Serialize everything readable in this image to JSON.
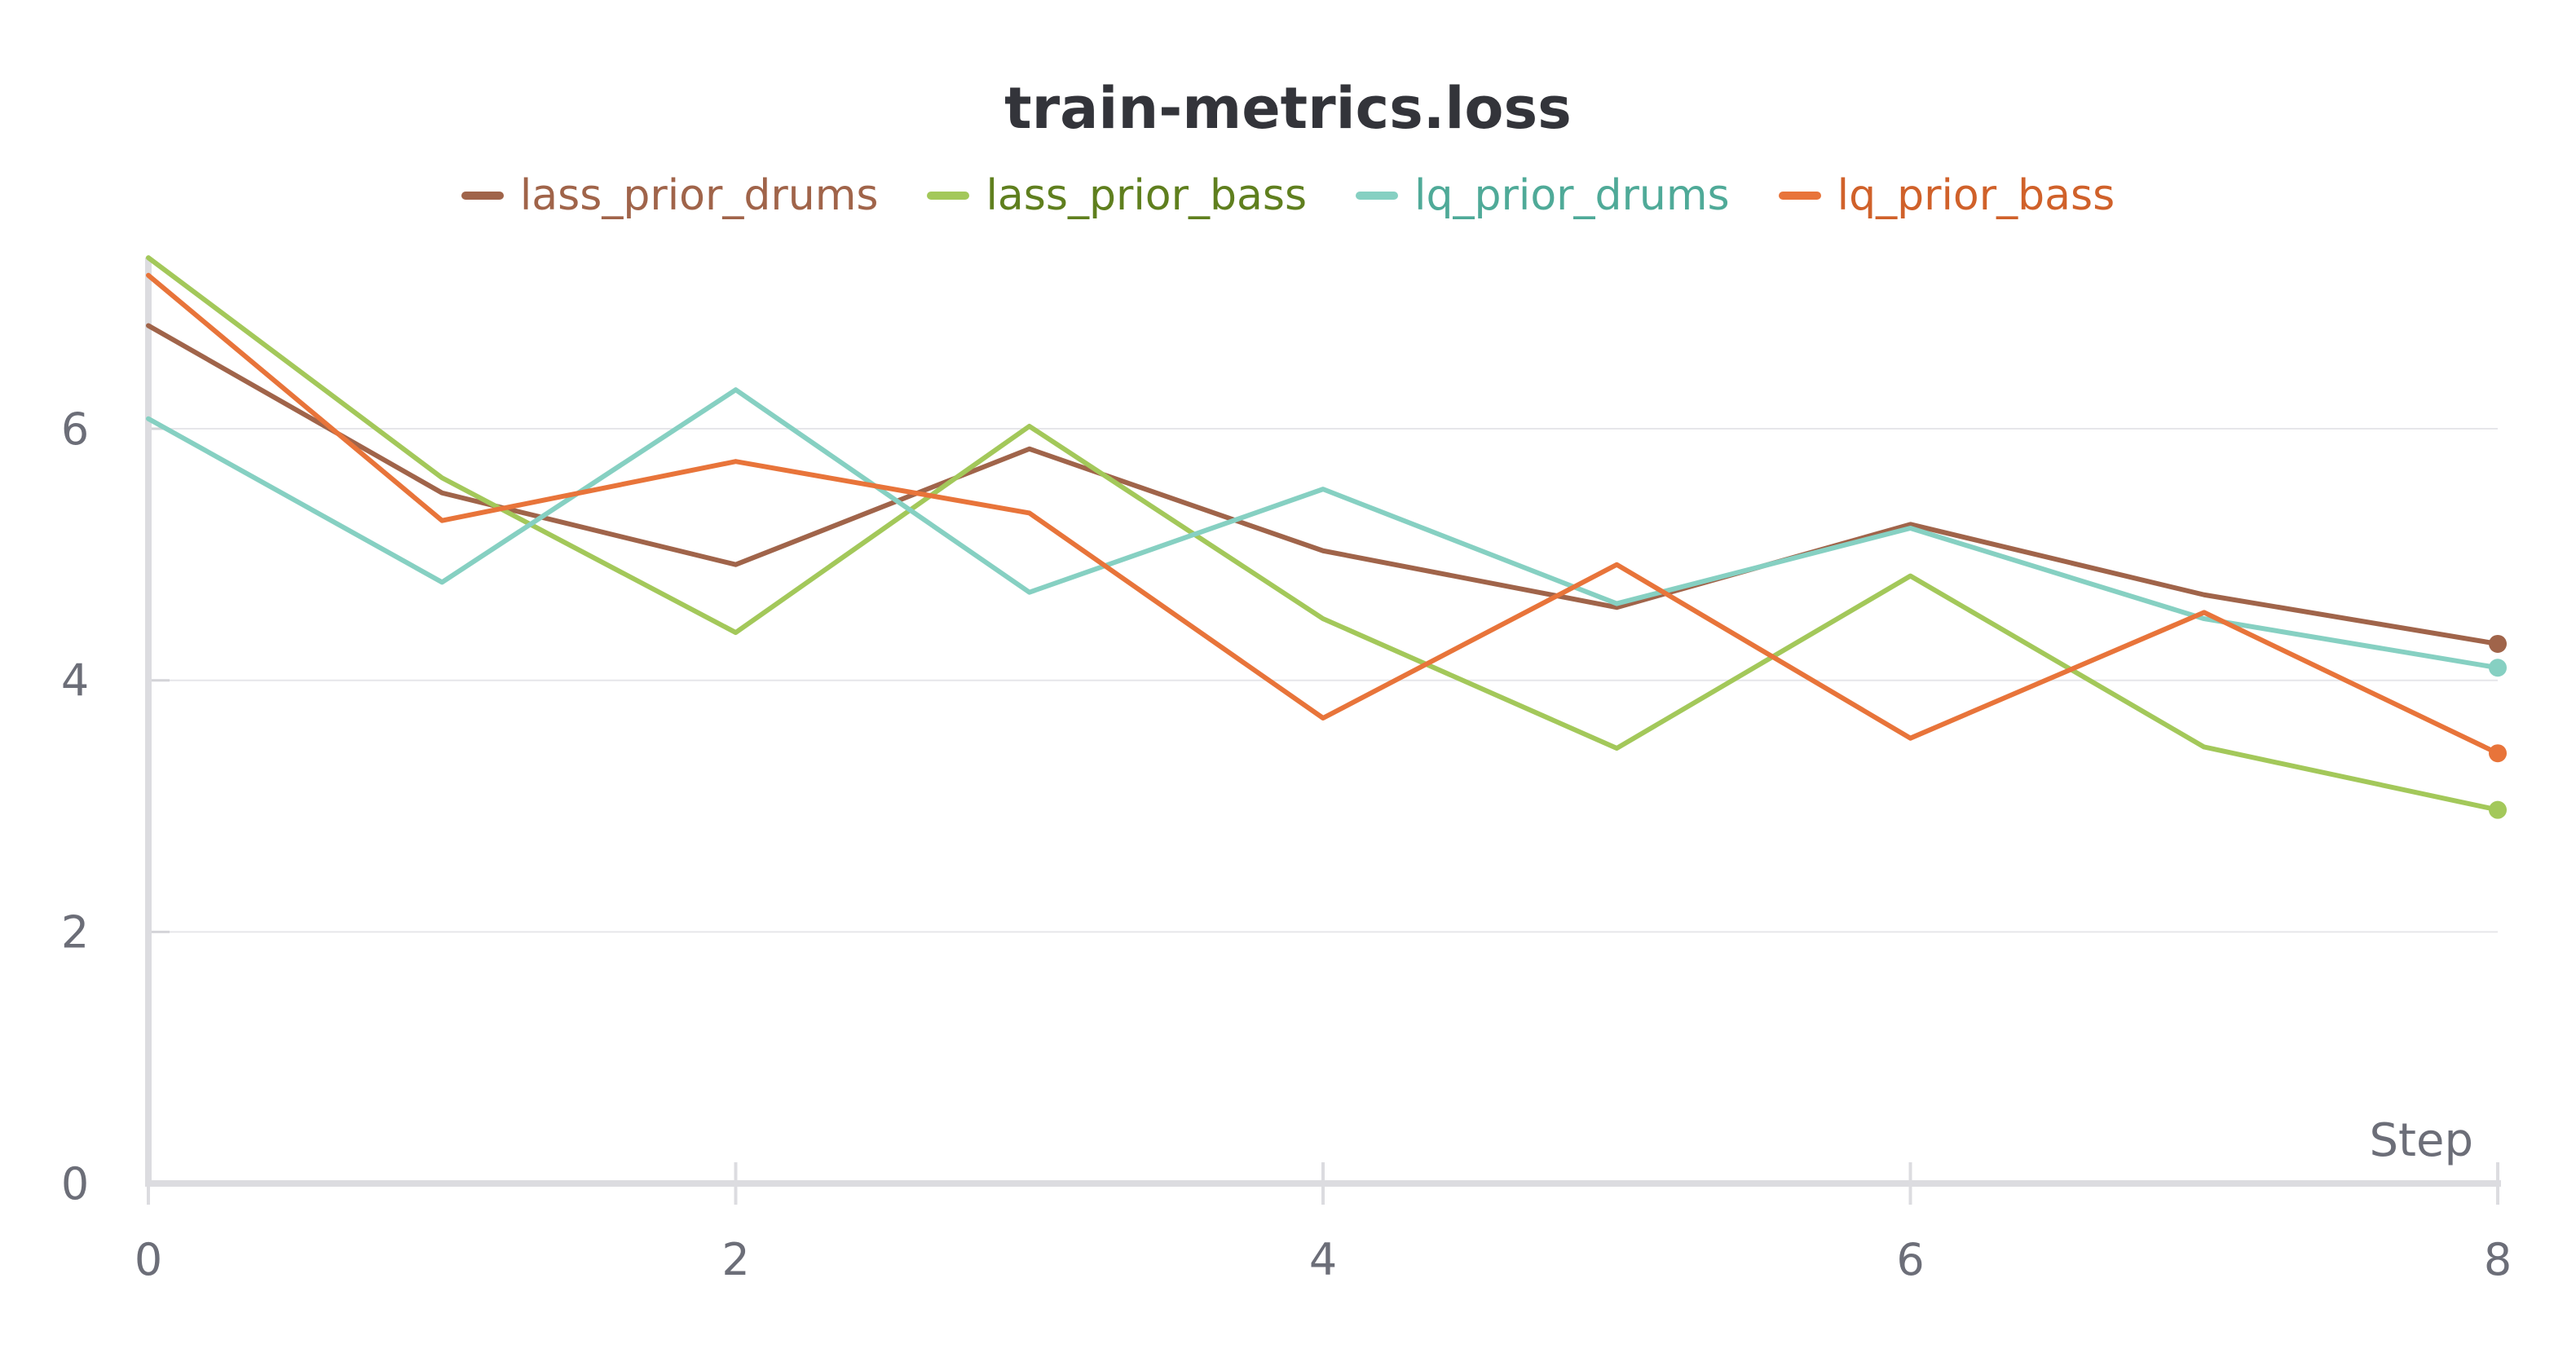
{
  "chart_data": {
    "type": "line",
    "title": "train-metrics.loss",
    "xlabel": "Step",
    "ylabel": "",
    "x": [
      0,
      1,
      2,
      3,
      4,
      5,
      6,
      7,
      8
    ],
    "xlim": [
      0,
      8
    ],
    "ylim": [
      0,
      7.4
    ],
    "x_ticks": [
      0,
      2,
      4,
      6,
      8
    ],
    "y_ticks": [
      0,
      2,
      4,
      6
    ],
    "grid": true,
    "legend_position": "top",
    "series": [
      {
        "name": "lass_prior_drums",
        "color": "#a0644a",
        "label_color": "#a0644a",
        "values": [
          6.82,
          5.49,
          4.92,
          5.84,
          5.03,
          4.58,
          5.24,
          4.68,
          4.29
        ]
      },
      {
        "name": "lass_prior_bass",
        "color": "#a3c85a",
        "label_color": "#5f7f1e",
        "values": [
          7.36,
          5.61,
          4.38,
          6.02,
          4.49,
          3.46,
          4.83,
          3.47,
          2.97
        ]
      },
      {
        "name": "lq_prior_drums",
        "color": "#86d0c2",
        "label_color": "#4faa98",
        "values": [
          6.08,
          4.78,
          6.31,
          4.7,
          5.52,
          4.61,
          5.21,
          4.49,
          4.1
        ]
      },
      {
        "name": "lq_prior_bass",
        "color": "#e8743a",
        "label_color": "#d0612a",
        "values": [
          7.22,
          5.27,
          5.74,
          5.33,
          3.7,
          4.92,
          3.54,
          4.54,
          3.42
        ]
      }
    ]
  }
}
